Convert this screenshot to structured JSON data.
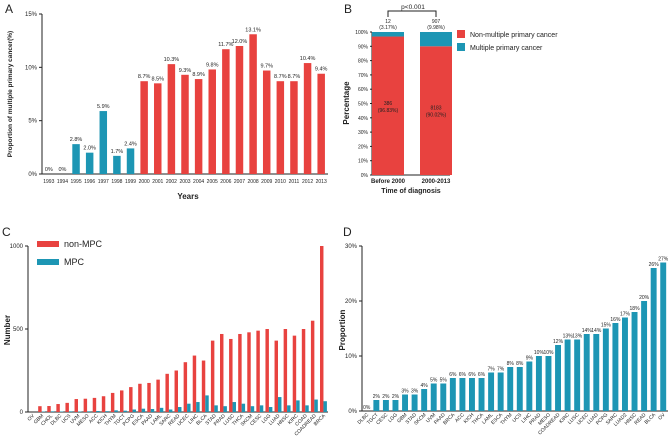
{
  "colors": {
    "red": "#e8423f",
    "blue": "#1d96b4",
    "axis": "#222222"
  },
  "chart_data": [
    {
      "panel": "A",
      "type": "bar",
      "title": "",
      "xlabel": "Years",
      "ylabel": "Proportion of multiple primary cancer(%)",
      "ylim": [
        0,
        15
      ],
      "yticks": [
        "0%",
        "5%",
        "10%",
        "15%"
      ],
      "categories": [
        "1993",
        "1994",
        "1995",
        "1996",
        "1997",
        "1998",
        "1999",
        "2000",
        "2001",
        "2002",
        "2003",
        "2004",
        "2005",
        "2006",
        "2007",
        "2008",
        "2009",
        "2010",
        "2011",
        "2012",
        "2013"
      ],
      "values": [
        0,
        0,
        2.8,
        2.0,
        5.9,
        1.7,
        2.4,
        8.7,
        8.5,
        10.3,
        9.3,
        8.9,
        9.8,
        11.7,
        12.0,
        13.1,
        9.7,
        8.7,
        8.7,
        10.4,
        9.4
      ],
      "labels": [
        "0%",
        "0%",
        "2.8%",
        "2.0%",
        "5.9%",
        "1.7%",
        "2.4%",
        "8.7%",
        "8.5%",
        "10.3%",
        "9.3%",
        "8.9%",
        "9.8%",
        "11.7%",
        "12.0%",
        "13.1%",
        "9.7%",
        "8.7%",
        "8.7%",
        "10.4%",
        "9.4%"
      ],
      "series_colors": [
        "blue",
        "blue",
        "blue",
        "blue",
        "blue",
        "blue",
        "blue",
        "red",
        "red",
        "red",
        "red",
        "red",
        "red",
        "red",
        "red",
        "red",
        "red",
        "red",
        "red",
        "red",
        "red"
      ]
    },
    {
      "panel": "B",
      "type": "bar",
      "stacked": true,
      "xlabel": "Time of diagnosis",
      "ylabel": "Percentage",
      "ylim": [
        0,
        100
      ],
      "yticks": [
        "0%",
        "10%",
        "20%",
        "30%",
        "40%",
        "50%",
        "60%",
        "70%",
        "80%",
        "90%",
        "100%"
      ],
      "categories": [
        "Before 2000",
        "2000-2013"
      ],
      "significance": "p<0.001",
      "legend": [
        "Non-multiple primary cancer",
        "Multiple primary cancer"
      ],
      "series": [
        {
          "name": "Non-multiple primary cancer",
          "values": [
            96.83,
            90.02
          ],
          "labels": [
            [
              "386",
              "(96.83%)"
            ],
            [
              "8183",
              "(90.02%)"
            ]
          ]
        },
        {
          "name": "Multiple primary cancer",
          "values": [
            3.17,
            9.98
          ],
          "labels": [
            [
              "12",
              "(3.17%)"
            ],
            [
              "907",
              "(9.98%)"
            ]
          ]
        }
      ]
    },
    {
      "panel": "C",
      "type": "bar",
      "ylabel": "Number",
      "ylim": [
        0,
        1000
      ],
      "yticks": [
        "0",
        "500",
        "1000"
      ],
      "legend": [
        "non-MPC",
        "MPC"
      ],
      "categories": [
        "OV",
        "GBM",
        "CHOL",
        "DLBC",
        "UCS",
        "UVM",
        "MESO",
        "ACC",
        "KICH",
        "THYM",
        "TGCT",
        "PCPG",
        "ESCA",
        "PAAD",
        "LAML",
        "SARC",
        "READ",
        "UCEC",
        "LIHC",
        "BLCA",
        "STAD",
        "PRAD",
        "LUSC",
        "THCA",
        "SKCM",
        "CESC",
        "LGG",
        "LUAD",
        "HNSC",
        "KIRC",
        "COAD",
        "COADREAD",
        "BRCA"
      ],
      "series": [
        {
          "name": "non-MPC",
          "values": [
            0,
            35,
            36,
            48,
            55,
            78,
            80,
            85,
            95,
            115,
            130,
            150,
            170,
            175,
            195,
            230,
            250,
            300,
            340,
            310,
            430,
            470,
            440,
            470,
            480,
            490,
            500,
            430,
            500,
            460,
            500,
            550,
            1000
          ]
        },
        {
          "name": "MPC",
          "values": [
            0,
            3,
            4,
            3,
            4,
            3,
            4,
            6,
            5,
            10,
            8,
            15,
            20,
            18,
            25,
            15,
            30,
            50,
            60,
            100,
            40,
            35,
            60,
            50,
            35,
            40,
            30,
            90,
            40,
            70,
            40,
            75,
            65
          ]
        }
      ]
    },
    {
      "panel": "D",
      "type": "bar",
      "ylabel": "Proportion",
      "ylim": [
        0,
        30
      ],
      "yticks": [
        "0%",
        "10%",
        "20%",
        "30%"
      ],
      "categories": [
        "DLBC",
        "TGCT",
        "CESC",
        "LGG",
        "GBM",
        "STAD",
        "SKCM",
        "UVM",
        "PAAD",
        "BRCA",
        "ACC",
        "KICH",
        "THCA",
        "LAML",
        "ESCA",
        "THYM",
        "UCS",
        "LIHC",
        "PRAD",
        "MESO",
        "COADREAD",
        "KIRC",
        "LUSC",
        "UCEC",
        "LUAD",
        "PCPG",
        "SARC",
        "LUAD2",
        "HNSC",
        "READ",
        "BLCA",
        "OV"
      ],
      "values": [
        0,
        2,
        2,
        2,
        3,
        3,
        4,
        5,
        5,
        6,
        6,
        6,
        6,
        7,
        7,
        8,
        8,
        9,
        10,
        10,
        12,
        13,
        13,
        14,
        14,
        15,
        16,
        17,
        18,
        20,
        26,
        27
      ],
      "labels": [
        "0%",
        "2%",
        "2%",
        "2%",
        "3%",
        "3%",
        "4%",
        "5%",
        "5%",
        "6%",
        "6%",
        "6%",
        "6%",
        "7%",
        "7%",
        "8%",
        "8%",
        "9%",
        "10%",
        "10%",
        "12%",
        "13%",
        "13%",
        "14%",
        "14%",
        "15%",
        "16%",
        "17%",
        "18%",
        "20%",
        "26%",
        "27%"
      ]
    }
  ],
  "panel_letters": [
    "A",
    "B",
    "C",
    "D"
  ]
}
